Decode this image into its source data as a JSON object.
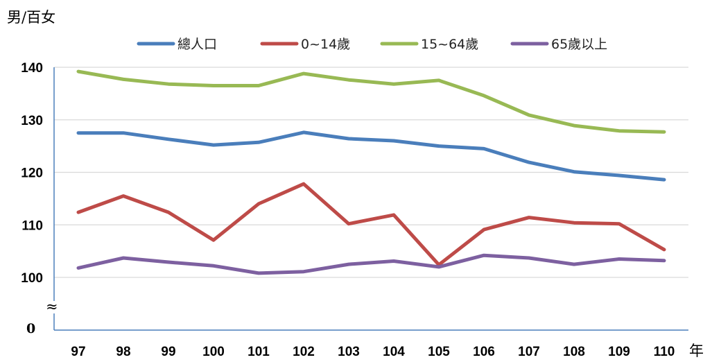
{
  "chart_data": {
    "type": "line",
    "title": "",
    "ylabel": "男/百女",
    "xlabel": "年",
    "ylim": [
      100,
      140
    ],
    "yticks": [
      100,
      110,
      120,
      130,
      140
    ],
    "y_zero_label": "0",
    "axis_break_symbol": "≈",
    "grid": true,
    "legend": "top",
    "categories": [
      "97",
      "98",
      "99",
      "100",
      "101",
      "102",
      "103",
      "104",
      "105",
      "106",
      "107",
      "108",
      "109",
      "110"
    ],
    "series": [
      {
        "name": "總人口",
        "color": "#4a7ebb",
        "values": [
          127.5,
          127.5,
          126.3,
          125.2,
          125.7,
          127.6,
          126.4,
          126.0,
          125.0,
          124.5,
          121.9,
          120.1,
          119.4,
          118.6
        ]
      },
      {
        "name": "0~14歲",
        "color": "#be4b48",
        "values": [
          112.4,
          115.5,
          112.4,
          107.1,
          114.0,
          117.8,
          110.2,
          111.9,
          102.4,
          109.1,
          111.4,
          110.4,
          110.2,
          105.3
        ]
      },
      {
        "name": "15~64歲",
        "color": "#98b954",
        "values": [
          139.2,
          137.7,
          136.8,
          136.5,
          136.5,
          138.8,
          137.6,
          136.8,
          137.5,
          134.6,
          130.9,
          128.9,
          127.9,
          127.7
        ]
      },
      {
        "name": "65歲以上",
        "color": "#7d60a0",
        "values": [
          101.8,
          103.7,
          102.9,
          102.2,
          100.8,
          101.1,
          102.5,
          103.1,
          102.0,
          104.2,
          103.7,
          102.5,
          103.5,
          103.2
        ]
      }
    ]
  }
}
